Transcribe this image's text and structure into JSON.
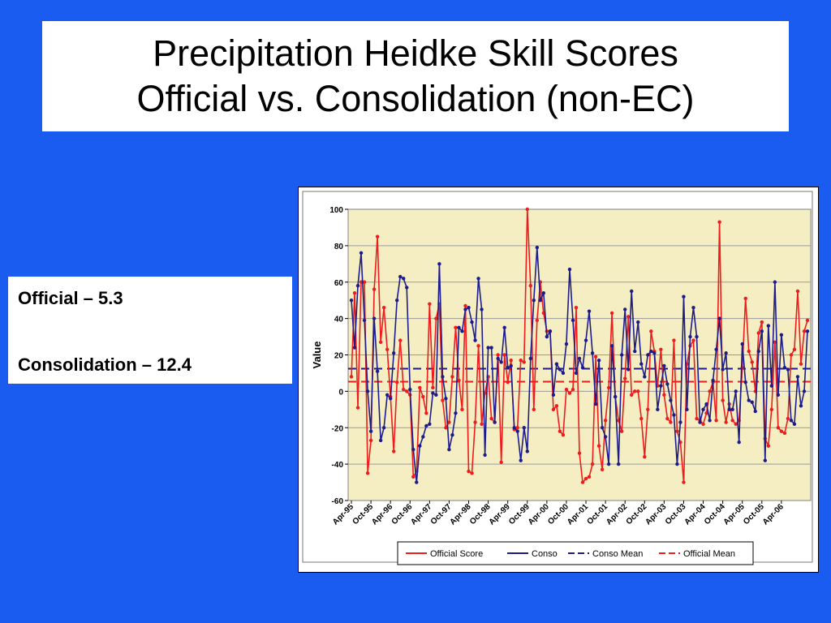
{
  "title": {
    "line1": "Precipitation Heidke Skill Scores",
    "line2": "Official vs. Consolidation (non-EC)"
  },
  "stats": {
    "official": "Official – 5.3",
    "consolidation": "Consolidation – 12.4"
  },
  "colors": {
    "background": "#1a5cf0",
    "plot_background": "#f5eec3",
    "official": "#ee1c1c",
    "conso": "#1c1c8c"
  },
  "chart_data": {
    "type": "line",
    "title": "",
    "xlabel": "",
    "ylabel": "Value",
    "ylim": [
      -60,
      100
    ],
    "yticks": [
      -60,
      -40,
      -20,
      0,
      20,
      40,
      60,
      80,
      100
    ],
    "grid": true,
    "legend_position": "bottom",
    "x_tick_labels": [
      "Apr-95",
      "Oct-95",
      "Apr-96",
      "Oct-96",
      "Apr-97",
      "Oct-97",
      "Apr-98",
      "Oct-98",
      "Apr-99",
      "Oct-99",
      "Apr-00",
      "Oct-00",
      "Apr-01",
      "Oct-01",
      "Apr-02",
      "Oct-02",
      "Apr-03",
      "Oct-03",
      "Apr-04",
      "Oct-04",
      "Apr-05",
      "Oct-05",
      "Apr-06"
    ],
    "x_start": "Apr-95",
    "x_end": "Jun-06",
    "series": [
      {
        "name": "Official Score",
        "style": "solid",
        "color": "#ee1c1c",
        "values": [
          8,
          54,
          -9,
          60,
          60,
          -45,
          -27,
          56,
          85,
          27,
          46,
          23,
          -3,
          -33,
          5,
          28,
          1,
          0,
          -2,
          -47,
          -44,
          2,
          -3,
          -12,
          48,
          2,
          40,
          48,
          -5,
          -20,
          -17,
          8,
          35,
          6,
          -10,
          47,
          -44,
          -45,
          -17,
          25,
          -18,
          -1,
          8,
          -15,
          -17,
          20,
          -39,
          20,
          5,
          17,
          -21,
          -20,
          17,
          16,
          100,
          58,
          -10,
          39,
          60,
          43,
          33,
          33,
          -10,
          -8,
          -22,
          -24,
          1,
          -1,
          1,
          46,
          -34,
          -50,
          -48,
          -47,
          -40,
          19,
          -30,
          -43,
          -16,
          2,
          43,
          -3,
          -16,
          -22,
          7,
          41,
          -2,
          0,
          0,
          -15,
          -36,
          -10,
          33,
          22,
          3,
          23,
          -2,
          -15,
          -17,
          28,
          -22,
          -28,
          -50,
          15,
          25,
          28,
          -15,
          -16,
          -18,
          -12,
          0,
          5,
          -16,
          93,
          -5,
          -17,
          -7,
          -16,
          -18,
          -16,
          13,
          51,
          22,
          16,
          0,
          32,
          38,
          -26,
          -30,
          -10,
          27,
          -20,
          -22,
          -23,
          -15,
          20,
          23,
          55,
          15,
          33,
          39
        ]
      },
      {
        "name": "Conso",
        "style": "solid",
        "color": "#1c1c8c",
        "values": [
          50,
          24,
          58,
          76,
          39,
          0,
          -22,
          40,
          11,
          -27,
          -20,
          -2,
          -4,
          21,
          50,
          63,
          62,
          57,
          1,
          -32,
          -50,
          -30,
          -25,
          -19,
          -18,
          -1,
          -2,
          70,
          8,
          -4,
          -32,
          -24,
          -12,
          35,
          33,
          45,
          46,
          38,
          28,
          62,
          45,
          -35,
          24,
          24,
          -17,
          18,
          16,
          35,
          13,
          14,
          -20,
          -22,
          -38,
          -20,
          -33,
          18,
          50,
          79,
          50,
          54,
          30,
          33,
          -2,
          15,
          12,
          10,
          26,
          67,
          39,
          10,
          18,
          13,
          28,
          44,
          21,
          -7,
          17,
          -20,
          -25,
          -40,
          25,
          -3,
          -40,
          20,
          45,
          12,
          55,
          22,
          38,
          15,
          8,
          20,
          22,
          21,
          -10,
          3,
          14,
          4,
          -5,
          -13,
          -40,
          -17,
          52,
          -10,
          30,
          46,
          30,
          -17,
          -10,
          -7,
          -16,
          6,
          23,
          40,
          12,
          21,
          -10,
          -10,
          0,
          -28,
          26,
          5,
          -5,
          -6,
          -11,
          22,
          33,
          -38,
          36,
          3,
          60,
          -2,
          31,
          13,
          12,
          -16,
          -18,
          8,
          -8,
          0,
          33
        ]
      },
      {
        "name": "Conso Mean",
        "style": "dashed",
        "color": "#1c1c8c",
        "constant": 12.4
      },
      {
        "name": "Official Mean",
        "style": "dashed",
        "color": "#ee1c1c",
        "constant": 5.3
      }
    ]
  }
}
